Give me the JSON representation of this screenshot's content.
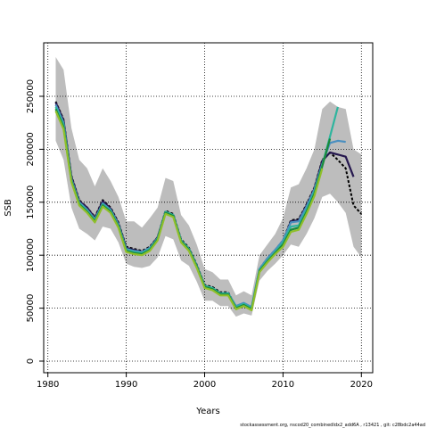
{
  "chart_data": {
    "type": "line",
    "title": "",
    "xlabel": "Years",
    "ylabel": "SSB",
    "xlim": [
      1980,
      2020
    ],
    "ylim": [
      0,
      250000
    ],
    "x_ticks": [
      1980,
      1990,
      2000,
      2010,
      2020
    ],
    "y_ticks": [
      0,
      50000,
      100000,
      150000,
      200000,
      250000
    ],
    "grid": "dotted",
    "legend": "none",
    "confidence_band": {
      "x": [
        1981,
        1982,
        1983,
        1984,
        1985,
        1986,
        1987,
        1988,
        1989,
        1990,
        1991,
        1992,
        1993,
        1994,
        1995,
        1996,
        1997,
        1998,
        1999,
        2000,
        2001,
        2002,
        2003,
        2004,
        2005,
        2006,
        2007,
        2008,
        2009,
        2010,
        2011,
        2012,
        2013,
        2014,
        2015,
        2016,
        2017,
        2018,
        2019,
        2020
      ],
      "lower": [
        208000,
        190000,
        145000,
        125000,
        120000,
        114000,
        127000,
        125000,
        112000,
        92000,
        89000,
        88000,
        90000,
        98000,
        118000,
        115000,
        95000,
        90000,
        75000,
        57000,
        57000,
        52000,
        52000,
        42000,
        45000,
        43000,
        76000,
        85000,
        92000,
        100000,
        110000,
        108000,
        120000,
        135000,
        155000,
        158000,
        150000,
        140000,
        108000,
        98000
      ],
      "upper": [
        287000,
        275000,
        220000,
        190000,
        182000,
        165000,
        182000,
        170000,
        155000,
        132000,
        132000,
        126000,
        135000,
        145000,
        173000,
        170000,
        138000,
        128000,
        110000,
        87000,
        84000,
        77000,
        77000,
        62000,
        66000,
        62000,
        100000,
        110000,
        120000,
        135000,
        164000,
        167000,
        182000,
        200000,
        238000,
        245000,
        240000,
        238000,
        200000,
        195000
      ]
    },
    "series": [
      {
        "color": "#000000",
        "style": "dashed",
        "x": [
          1981,
          1982,
          1983,
          1984,
          1985,
          1986,
          1987,
          1988,
          1989,
          1990,
          1991,
          1992,
          1993,
          1994,
          1995,
          1996,
          1997,
          1998,
          1999,
          2000,
          2001,
          2002,
          2003,
          2004,
          2005,
          2006,
          2007,
          2008,
          2009,
          2010,
          2011,
          2012,
          2013,
          2014,
          2015,
          2016,
          2017,
          2018,
          2019,
          2020
        ],
        "values": [
          245000,
          228000,
          175000,
          152000,
          145000,
          136000,
          152000,
          145000,
          131000,
          108000,
          106000,
          104000,
          108000,
          117000,
          142000,
          139000,
          115000,
          107000,
          91000,
          72000,
          70000,
          65000,
          65000,
          51000,
          54000,
          50000,
          87000,
          97000,
          105000,
          114000,
          133000,
          134000,
          148000,
          164000,
          190000,
          197000,
          190000,
          182000,
          147000,
          139000
        ]
      },
      {
        "color": "#26184f",
        "style": "solid",
        "x": [
          1981,
          1982,
          1983,
          1984,
          1985,
          1986,
          1987,
          1988,
          1989,
          1990,
          1991,
          1992,
          1993,
          1994,
          1995,
          1996,
          1997,
          1998,
          1999,
          2000,
          2001,
          2002,
          2003,
          2004,
          2005,
          2006,
          2007,
          2008,
          2009,
          2010,
          2011,
          2012,
          2013,
          2014,
          2015,
          2016,
          2017,
          2018,
          2019
        ],
        "values": [
          244000,
          227000,
          174000,
          151000,
          145000,
          135000,
          151000,
          144000,
          130000,
          107000,
          105000,
          103000,
          107000,
          117000,
          141000,
          138000,
          114000,
          106000,
          90000,
          71000,
          69000,
          64000,
          64000,
          50000,
          53000,
          49000,
          86000,
          96000,
          104000,
          113000,
          132000,
          133000,
          147000,
          163000,
          189000,
          197000,
          195000,
          193000,
          174000
        ]
      },
      {
        "color": "#4a8fc0",
        "style": "solid",
        "x": [
          1981,
          1982,
          1983,
          1984,
          1985,
          1986,
          1987,
          1988,
          1989,
          1990,
          1991,
          1992,
          1993,
          1994,
          1995,
          1996,
          1997,
          1998,
          1999,
          2000,
          2001,
          2002,
          2003,
          2004,
          2005,
          2006,
          2007,
          2008,
          2009,
          2010,
          2011,
          2012,
          2013,
          2014,
          2015,
          2016,
          2017,
          2018
        ],
        "values": [
          242000,
          225000,
          172000,
          150000,
          143000,
          134000,
          149000,
          143000,
          129000,
          106000,
          104000,
          103000,
          107000,
          116000,
          141000,
          138000,
          114000,
          106000,
          90000,
          71000,
          69000,
          64000,
          64000,
          52000,
          55000,
          51000,
          87000,
          97000,
          105000,
          114000,
          131000,
          132000,
          146000,
          162000,
          186000,
          206000,
          208000,
          207000
        ]
      },
      {
        "color": "#2eb59e",
        "style": "solid",
        "x": [
          1981,
          1982,
          1983,
          1984,
          1985,
          1986,
          1987,
          1988,
          1989,
          1990,
          1991,
          1992,
          1993,
          1994,
          1995,
          1996,
          1997,
          1998,
          1999,
          2000,
          2001,
          2002,
          2003,
          2004,
          2005,
          2006,
          2007,
          2008,
          2009,
          2010,
          2011,
          2012,
          2013,
          2014,
          2015,
          2016,
          2017
        ],
        "values": [
          240000,
          223000,
          171000,
          149000,
          142000,
          133000,
          148000,
          142000,
          128000,
          105000,
          103000,
          102000,
          106000,
          116000,
          141000,
          138000,
          114000,
          106000,
          90000,
          71000,
          69000,
          64000,
          64000,
          51000,
          54000,
          50000,
          86000,
          95000,
          103000,
          112000,
          127000,
          128000,
          143000,
          160000,
          185000,
          212000,
          240000
        ]
      },
      {
        "color": "#1a8a3a",
        "style": "solid",
        "x": [
          1981,
          1982,
          1983,
          1984,
          1985,
          1986,
          1987,
          1988,
          1989,
          1990,
          1991,
          1992,
          1993,
          1994,
          1995,
          1996,
          1997,
          1998,
          1999,
          2000,
          2001,
          2002,
          2003,
          2004,
          2005,
          2006,
          2007,
          2008,
          2009,
          2010,
          2011,
          2012,
          2013,
          2014,
          2015,
          2016
        ],
        "values": [
          238000,
          221000,
          170000,
          148000,
          141000,
          132000,
          147000,
          141000,
          127000,
          104000,
          102000,
          101000,
          105000,
          115000,
          140000,
          137000,
          113000,
          105000,
          89000,
          70000,
          68000,
          63000,
          63000,
          50000,
          53000,
          49000,
          85000,
          94000,
          102000,
          110000,
          124000,
          126000,
          141000,
          158000,
          184000,
          210000
        ]
      },
      {
        "color": "#8fbf2a",
        "style": "solid",
        "x": [
          1981,
          1982,
          1983,
          1984,
          1985,
          1986,
          1987,
          1988,
          1989,
          1990,
          1991,
          1992,
          1993,
          1994,
          1995,
          1996,
          1997,
          1998,
          1999,
          2000,
          2001,
          2002,
          2003,
          2004,
          2005,
          2006,
          2007,
          2008,
          2009,
          2010,
          2011,
          2012,
          2013,
          2014,
          2015
        ],
        "values": [
          236000,
          219000,
          169000,
          147000,
          140000,
          131000,
          146000,
          140000,
          126000,
          103000,
          101000,
          100000,
          104000,
          114000,
          139000,
          136000,
          112000,
          104000,
          88000,
          69000,
          67000,
          62000,
          62000,
          49000,
          52000,
          48000,
          84000,
          93000,
          101000,
          108000,
          122000,
          124000,
          139000,
          156000,
          182000
        ]
      }
    ],
    "footer": "stockassessment.org, nscod20_combinedIdx2_add6A , r13421 , git: c28bdc2a44ad"
  }
}
